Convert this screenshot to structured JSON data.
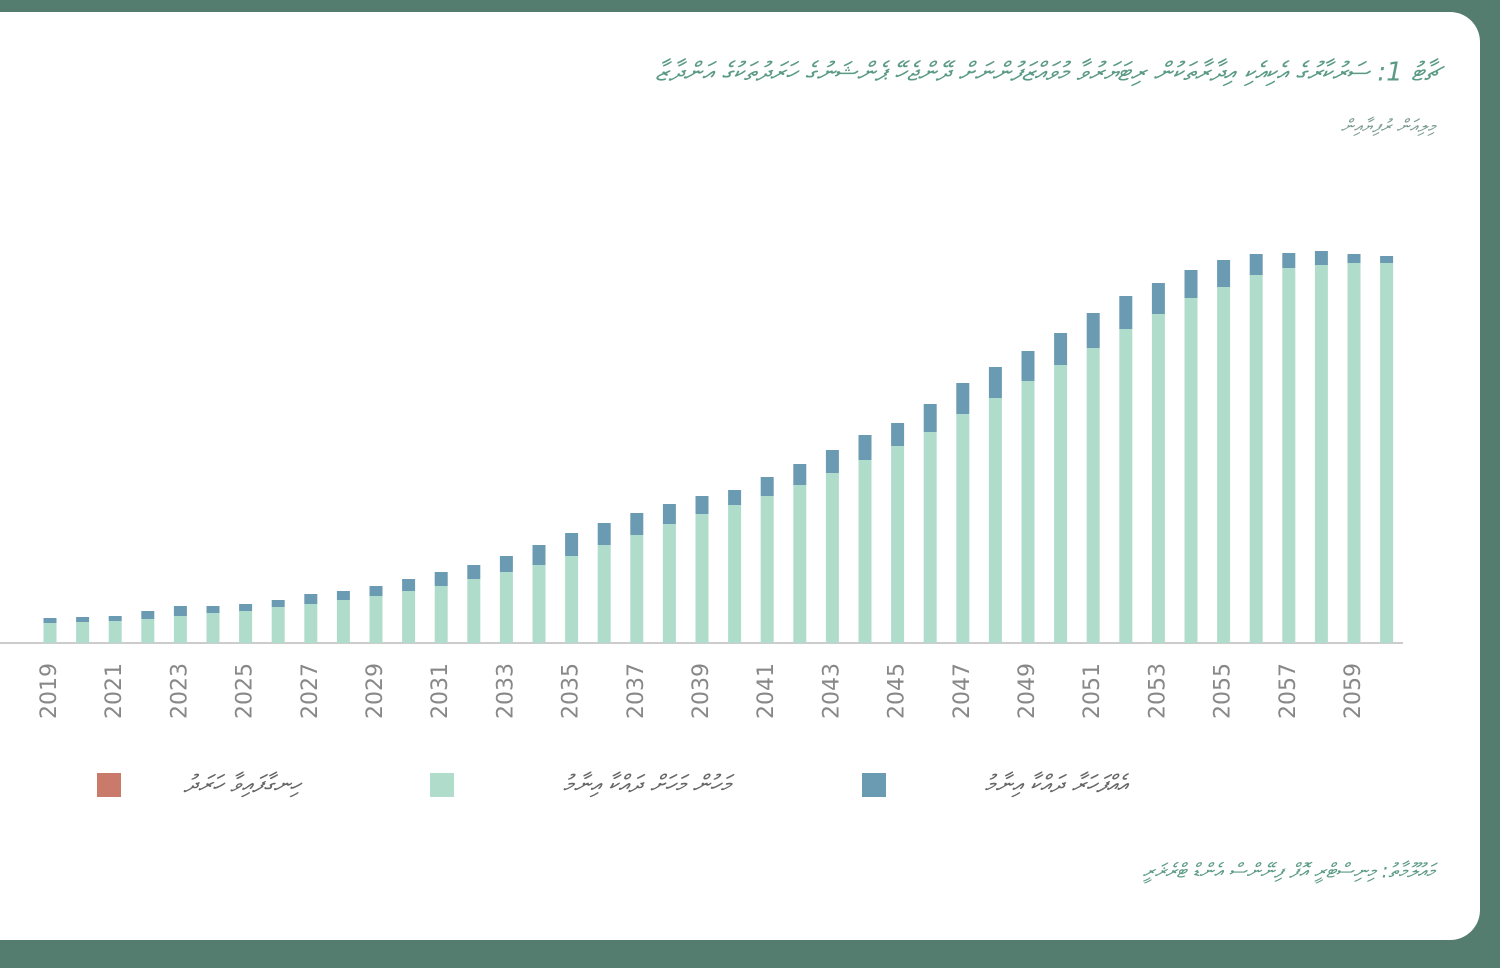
{
  "chart_data": {
    "type": "bar",
    "stacked": true,
    "title": "ޗާޓު 1: ސަރުކާރުގެ އެކިއެކި އިދާރާތަކުން ރިޓަޔަރުވާ މުވައްޒަފުންނަށް ދޭންޖެހޭ ޕެންޝަނުގެ ހަރަދުތަކުގެ އަންދާޒާ",
    "subtitle": "މިލިއަން ރުފިޔާއިން",
    "source": "މައުލޫމާތު: މިނިސްޓްރީ އޮފް ފިނޭންސް އެންޑް ޓްރެޜަރީ",
    "categories": [
      "2019",
      null,
      "2021",
      null,
      "2023",
      null,
      "2025",
      null,
      "2027",
      null,
      "2029",
      null,
      "2031",
      null,
      "2033",
      null,
      "2035",
      null,
      "2037",
      null,
      "2039",
      null,
      "2041",
      null,
      "2043",
      null,
      "2045",
      null,
      "2047",
      null,
      "2049",
      null,
      "2051",
      null,
      "2053",
      null,
      "2055",
      null,
      "2057",
      null,
      "2059",
      null
    ],
    "series": [
      {
        "name": "ހިނގާފައިވާ ހަރަދު",
        "color": "#c97a6a",
        "values": [
          0,
          0,
          0,
          0,
          0,
          0,
          0,
          0,
          0,
          0,
          0,
          0,
          0,
          0,
          0,
          0,
          0,
          0,
          0,
          0,
          0,
          0,
          0,
          0,
          0,
          0,
          0,
          0,
          0,
          0,
          0,
          0,
          0,
          0,
          0,
          0,
          0,
          0,
          0,
          0,
          0,
          0
        ]
      },
      {
        "name": "މަހުން މަހަށް ދައްކާ އިނާމު",
        "color": "#b0dccb",
        "values": [
          20,
          21,
          22,
          24,
          27,
          30,
          32,
          36,
          39,
          43,
          47,
          52,
          57,
          64,
          71,
          78,
          87,
          98,
          108,
          119,
          129,
          138,
          147,
          158,
          170,
          183,
          197,
          211,
          229,
          245,
          262,
          278,
          295,
          314,
          329,
          345,
          356,
          368,
          375,
          378,
          380,
          380
        ]
      },
      {
        "name": "އެއްފަހަރާ ދައްކާ އިނާމު",
        "color": "#6b9ab3",
        "values": [
          5,
          5,
          5,
          8,
          10,
          7,
          7,
          7,
          10,
          9,
          10,
          12,
          14,
          14,
          16,
          20,
          23,
          22,
          22,
          20,
          18,
          15,
          19,
          21,
          23,
          25,
          23,
          28,
          31,
          31,
          30,
          32,
          35,
          33,
          31,
          28,
          27,
          21,
          15,
          14,
          9,
          7
        ]
      }
    ],
    "ylim": [
      0,
      400
    ]
  }
}
